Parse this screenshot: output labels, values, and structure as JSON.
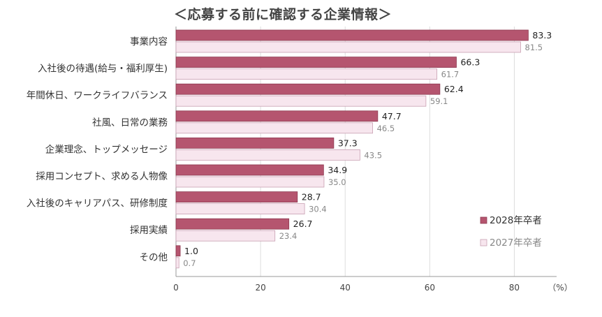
{
  "chart_data": {
    "type": "bar",
    "orientation": "horizontal",
    "title": "＜応募する前に確認する企業情報＞",
    "categories": [
      "事業内容",
      "入社後の待遇(給与・福利厚生)",
      "年間休日、ワークライフバランス",
      "社風、日常の業務",
      "企業理念、トップメッセージ",
      "採用コンセプト、求める人物像",
      "入社後のキャリアパス、研修制度",
      "採用実績",
      "その他"
    ],
    "series": [
      {
        "name": "2028年卒者",
        "color": "#b5556f",
        "values": [
          83.3,
          66.3,
          62.4,
          47.7,
          37.3,
          34.9,
          28.7,
          26.7,
          1.0
        ],
        "labels": [
          "83.3",
          "66.3",
          "62.4",
          "47.7",
          "37.3",
          "34.9",
          "28.7",
          "26.7",
          "1.0"
        ]
      },
      {
        "name": "2027年卒者",
        "color": "#f7e6ee",
        "values": [
          81.5,
          61.7,
          59.1,
          46.5,
          43.5,
          35.0,
          30.4,
          23.4,
          0.7
        ],
        "labels": [
          "81.5",
          "61.7",
          "59.1",
          "46.5",
          "43.5",
          "35.0",
          "30.4",
          "23.4",
          "0.7"
        ]
      }
    ],
    "xlim": [
      0,
      90
    ],
    "xticks": [
      "0",
      "20",
      "40",
      "60",
      "80"
    ],
    "xtick_values": [
      0,
      20,
      40,
      60,
      80
    ],
    "xunit": "（%）",
    "grid": true,
    "legend_position": "bottom-right"
  }
}
